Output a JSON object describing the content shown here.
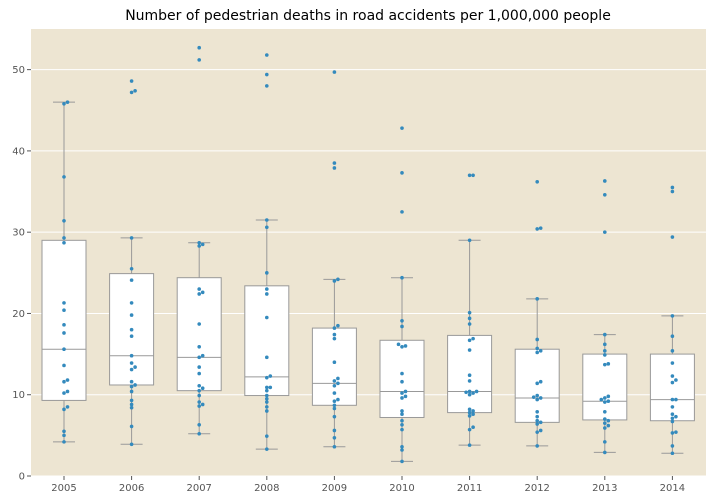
{
  "chart_data": {
    "type": "box",
    "title": "Number of pedestrian deaths in road accidents per 1,000,000 people",
    "xlabel": "",
    "ylabel": "",
    "categories": [
      "2005",
      "2006",
      "2007",
      "2008",
      "2009",
      "2010",
      "2011",
      "2012",
      "2013",
      "2014"
    ],
    "ylim": [
      0,
      55
    ],
    "yticks": [
      0,
      10,
      20,
      30,
      40,
      50
    ],
    "grid": "horizontal",
    "colors": {
      "background": "#ede5d2",
      "grid": "#ffffff",
      "box_fill": "#ffffff",
      "box_edge": "#999999",
      "points": "#348abd",
      "tick_text": "#555555"
    },
    "boxes": [
      {
        "category": "2005",
        "whislo": 4.2,
        "q1": 9.3,
        "med": 15.6,
        "q3": 29.0,
        "whishi": 46.0
      },
      {
        "category": "2006",
        "whislo": 3.9,
        "q1": 11.2,
        "med": 14.8,
        "q3": 24.9,
        "whishi": 29.3
      },
      {
        "category": "2007",
        "whislo": 5.2,
        "q1": 10.5,
        "med": 14.6,
        "q3": 24.4,
        "whishi": 28.7
      },
      {
        "category": "2008",
        "whislo": 3.3,
        "q1": 9.9,
        "med": 12.2,
        "q3": 23.4,
        "whishi": 31.5
      },
      {
        "category": "2009",
        "whislo": 3.6,
        "q1": 8.7,
        "med": 11.4,
        "q3": 18.2,
        "whishi": 24.2
      },
      {
        "category": "2010",
        "whislo": 1.8,
        "q1": 7.2,
        "med": 10.4,
        "q3": 16.7,
        "whishi": 24.4
      },
      {
        "category": "2011",
        "whislo": 3.8,
        "q1": 7.8,
        "med": 10.4,
        "q3": 17.3,
        "whishi": 29.0
      },
      {
        "category": "2012",
        "whislo": 3.7,
        "q1": 6.6,
        "med": 9.6,
        "q3": 15.6,
        "whishi": 21.8
      },
      {
        "category": "2013",
        "whislo": 2.9,
        "q1": 6.9,
        "med": 9.2,
        "q3": 15.0,
        "whishi": 17.4
      },
      {
        "category": "2014",
        "whislo": 2.8,
        "q1": 6.8,
        "med": 9.4,
        "q3": 15.0,
        "whishi": 19.7
      }
    ],
    "points": [
      {
        "category": "2005",
        "values": [
          46.0,
          45.8,
          36.8,
          31.4,
          29.3,
          28.7,
          21.3,
          20.4,
          18.6,
          17.6,
          15.6,
          13.6,
          11.8,
          11.6,
          10.4,
          10.2,
          8.5,
          8.2,
          5.5,
          5.0,
          4.2
        ]
      },
      {
        "category": "2006",
        "values": [
          48.6,
          47.4,
          47.2,
          29.3,
          25.5,
          24.1,
          21.3,
          19.8,
          18.0,
          17.2,
          14.8,
          13.9,
          13.4,
          13.1,
          11.6,
          11.2,
          11.0,
          10.4,
          9.3,
          8.8,
          8.4,
          6.1,
          3.9
        ]
      },
      {
        "category": "2007",
        "values": [
          52.7,
          51.2,
          28.7,
          28.5,
          28.3,
          23.0,
          22.6,
          22.4,
          18.7,
          15.9,
          14.8,
          14.6,
          13.4,
          12.6,
          11.1,
          10.8,
          10.5,
          9.9,
          9.1,
          8.8,
          8.6,
          6.3,
          5.2
        ]
      },
      {
        "category": "2008",
        "values": [
          51.8,
          49.4,
          48.0,
          31.5,
          30.6,
          25.0,
          23.0,
          22.4,
          19.5,
          14.6,
          12.3,
          12.1,
          10.9,
          10.9,
          10.5,
          9.9,
          9.5,
          9.1,
          8.5,
          8.0,
          4.9,
          3.3
        ]
      },
      {
        "category": "2009",
        "values": [
          49.7,
          38.5,
          37.9,
          24.2,
          24.0,
          18.5,
          18.2,
          17.4,
          16.9,
          14.0,
          12.0,
          11.7,
          11.4,
          11.1,
          10.2,
          9.4,
          9.2,
          8.7,
          8.3,
          7.3,
          5.6,
          4.7,
          3.6
        ]
      },
      {
        "category": "2010",
        "values": [
          42.8,
          37.3,
          32.5,
          24.4,
          19.1,
          18.4,
          16.2,
          16.0,
          15.9,
          12.6,
          11.6,
          10.4,
          10.2,
          9.8,
          9.6,
          8.0,
          7.6,
          6.8,
          6.3,
          5.7,
          3.6,
          3.2,
          1.8
        ]
      },
      {
        "category": "2011",
        "values": [
          37.0,
          37.0,
          29.0,
          20.1,
          19.4,
          18.7,
          16.9,
          16.7,
          15.5,
          12.4,
          11.7,
          10.4,
          10.4,
          10.3,
          10.2,
          10.0,
          8.2,
          8.0,
          7.8,
          7.6,
          7.4,
          6.0,
          5.7,
          3.8
        ]
      },
      {
        "category": "2012",
        "values": [
          36.2,
          30.5,
          30.4,
          21.8,
          16.8,
          15.7,
          15.4,
          15.2,
          11.6,
          11.4,
          9.9,
          9.7,
          9.6,
          9.4,
          7.9,
          7.3,
          6.8,
          6.6,
          6.4,
          5.6,
          5.4,
          3.7
        ]
      },
      {
        "category": "2013",
        "values": [
          36.3,
          34.6,
          30.0,
          17.4,
          16.2,
          15.4,
          14.9,
          13.8,
          13.7,
          9.8,
          9.6,
          9.4,
          9.2,
          9.1,
          7.9,
          7.0,
          6.8,
          6.5,
          6.2,
          5.9,
          4.2,
          2.9
        ]
      },
      {
        "category": "2014",
        "values": [
          35.5,
          35.0,
          29.4,
          19.7,
          17.2,
          15.4,
          13.9,
          12.3,
          11.8,
          11.5,
          9.4,
          9.4,
          8.5,
          7.6,
          7.3,
          7.1,
          6.7,
          5.4,
          5.3,
          3.7,
          2.8
        ]
      }
    ]
  }
}
